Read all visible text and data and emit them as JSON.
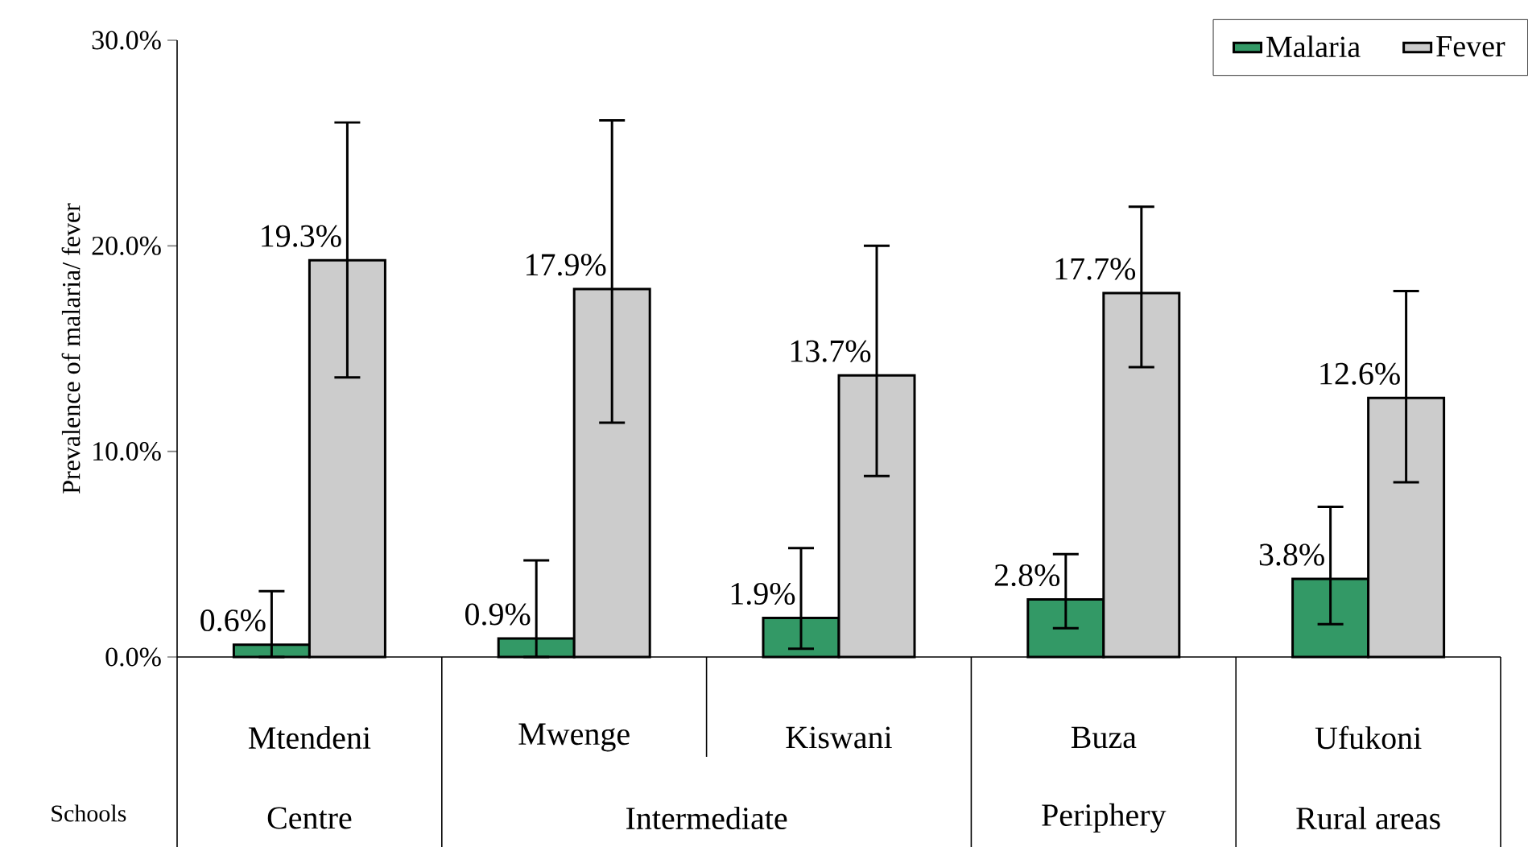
{
  "chart_data": {
    "type": "bar",
    "ylabel": "Prevalence of malaria/ fever",
    "xlabel": "Schools",
    "categories": [
      "Mtendeni",
      "Mwenge",
      "Kiswani",
      "Buza",
      "Ufukoni"
    ],
    "series": [
      {
        "name": "Malaria",
        "color": "#339966",
        "values": [
          0.6,
          0.9,
          1.9,
          2.8,
          3.8
        ],
        "value_labels": [
          "0.6%",
          "0.9%",
          "1.9%",
          "2.8%",
          "3.8%"
        ],
        "errors": [
          [
            0,
            3.2
          ],
          [
            0,
            4.7
          ],
          [
            0.4,
            5.3
          ],
          [
            1.4,
            5.0
          ],
          [
            1.6,
            7.3
          ]
        ]
      },
      {
        "name": "Fever",
        "color": "#cccccc",
        "values": [
          19.3,
          17.9,
          13.7,
          17.7,
          12.6
        ],
        "value_labels": [
          "19.3%",
          "17.9%",
          "13.7%",
          "17.7%",
          "12.6%"
        ],
        "errors": [
          [
            13.6,
            26.0
          ],
          [
            11.4,
            26.1
          ],
          [
            8.8,
            20.0
          ],
          [
            14.1,
            21.9
          ],
          [
            8.5,
            17.8
          ]
        ]
      }
    ],
    "ylim": [
      0,
      30
    ],
    "yticks": [
      {
        "value": 0,
        "label": "0.0%"
      },
      {
        "value": 10,
        "label": "10.0%"
      },
      {
        "value": 20,
        "label": "20.0%"
      },
      {
        "value": 30,
        "label": "30.0%"
      }
    ],
    "legend": "top right",
    "annotations": [
      "Centre",
      "Intermediate",
      "Periphery",
      "Rural areas"
    ]
  }
}
